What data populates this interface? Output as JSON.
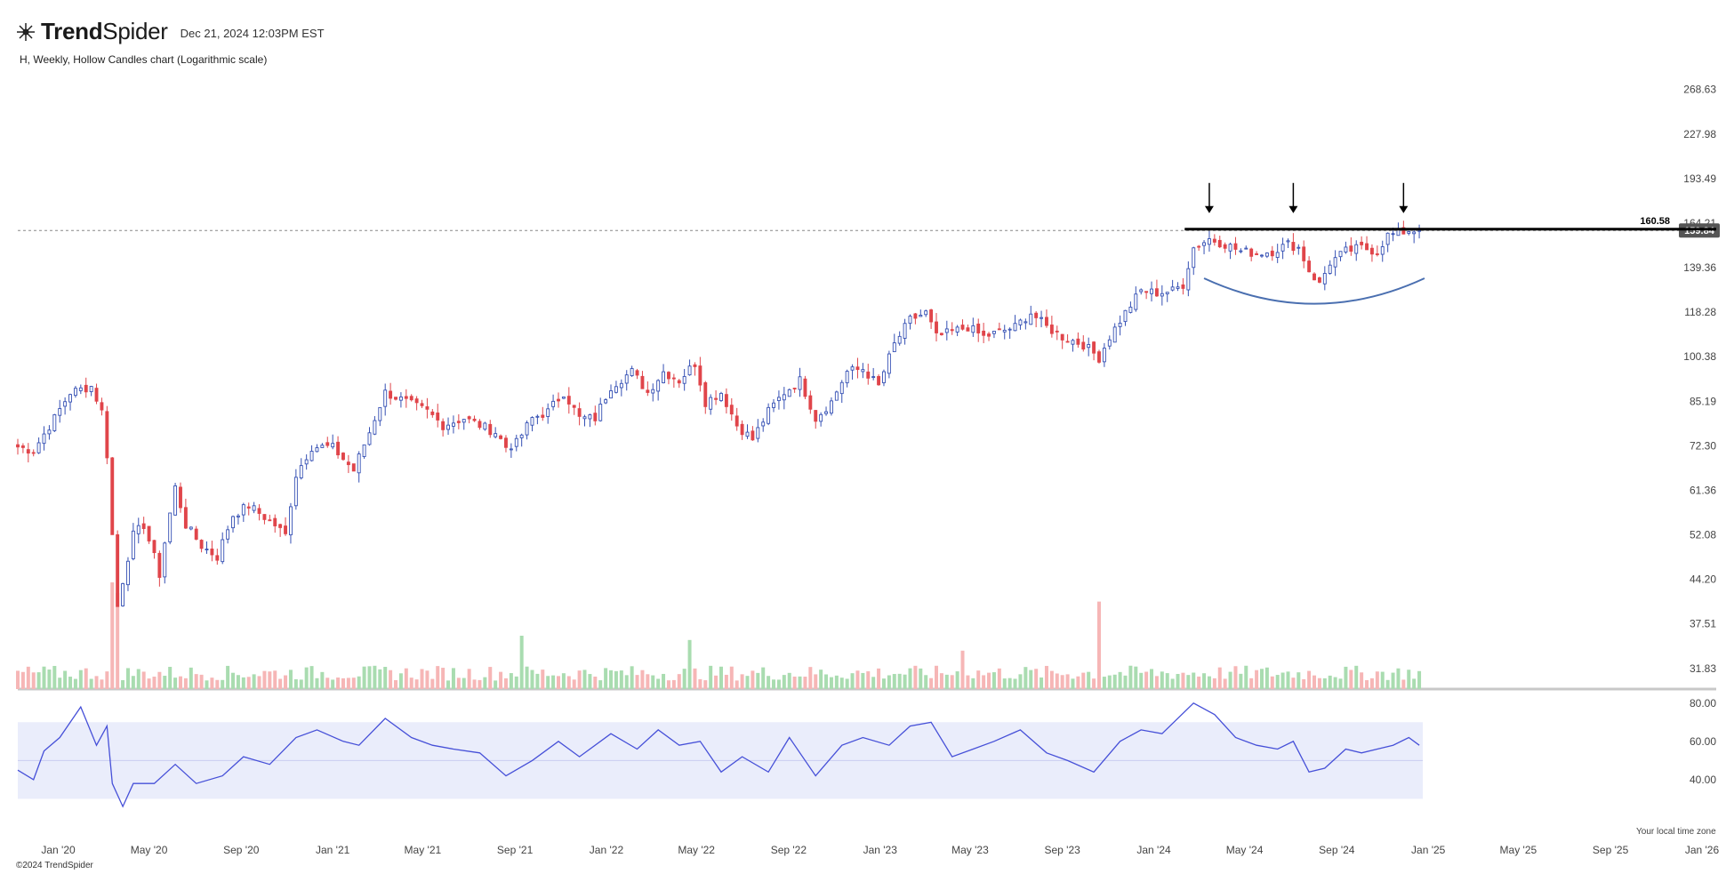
{
  "header": {
    "brand_bold": "Trend",
    "brand_rest": "Spider",
    "date": "Dec 21, 2024 12:03PM EST",
    "subtitle": "H, Weekly, Hollow Candles chart (Logarithmic scale)",
    "copyright": "©2024 TrendSpider",
    "local_time_note": "Your local time zone"
  },
  "colors": {
    "up": "#3550b4",
    "down": "#e0454a",
    "vol_up": "#a9dcb0",
    "vol_down": "#f6b6b6",
    "rsi_line": "#4650d8",
    "rsi_band": "#eaedfb",
    "resistance": "#000000",
    "arc": "#4a6fb0"
  },
  "chart_data": [
    {
      "type": "candlestick",
      "title": "H, Weekly, Hollow Candles chart (Logarithmic scale)",
      "scale": "log",
      "ylim": [
        29.5,
        300
      ],
      "y_ticks": [
        "268.63",
        "227.98",
        "193.49",
        "164.21",
        "139.36",
        "118.28",
        "100.38",
        "85.19",
        "72.30",
        "61.36",
        "52.08",
        "44.20",
        "37.51",
        "31.83"
      ],
      "x_ticks": [
        "Jan '20",
        "May '20",
        "Sep '20",
        "Jan '21",
        "May '21",
        "Sep '21",
        "Jan '22",
        "May '22",
        "Sep '22",
        "Jan '23",
        "May '23",
        "Sep '23",
        "Jan '24",
        "May '24",
        "Sep '24",
        "Jan '25",
        "May '25",
        "Sep '25",
        "Jan '26"
      ],
      "x_start": "2019-11-08",
      "x_end": "2026-01-20",
      "weekly_close_path": [
        [
          "2019-11-08",
          72
        ],
        [
          "2019-11-29",
          71
        ],
        [
          "2019-12-27",
          80
        ],
        [
          "2020-01-17",
          88
        ],
        [
          "2020-02-14",
          90
        ],
        [
          "2020-02-28",
          82
        ],
        [
          "2020-03-06",
          70
        ],
        [
          "2020-03-13",
          52
        ],
        [
          "2020-03-20",
          40
        ],
        [
          "2020-03-27",
          44
        ],
        [
          "2020-04-10",
          52
        ],
        [
          "2020-04-24",
          54
        ],
        [
          "2020-05-15",
          45
        ],
        [
          "2020-06-05",
          62
        ],
        [
          "2020-06-19",
          54
        ],
        [
          "2020-07-10",
          50
        ],
        [
          "2020-07-31",
          48
        ],
        [
          "2020-08-21",
          56
        ],
        [
          "2020-09-11",
          58
        ],
        [
          "2020-10-16",
          54
        ],
        [
          "2020-10-30",
          52
        ],
        [
          "2020-11-13",
          65
        ],
        [
          "2020-12-04",
          72
        ],
        [
          "2020-12-31",
          72
        ],
        [
          "2021-01-29",
          66
        ],
        [
          "2021-02-19",
          76
        ],
        [
          "2021-03-12",
          88
        ],
        [
          "2021-04-09",
          85
        ],
        [
          "2021-05-07",
          82
        ],
        [
          "2021-05-28",
          78
        ],
        [
          "2021-06-25",
          80
        ],
        [
          "2021-07-16",
          78
        ],
        [
          "2021-08-06",
          76
        ],
        [
          "2021-08-20",
          72
        ],
        [
          "2021-09-03",
          73
        ],
        [
          "2021-09-24",
          80
        ],
        [
          "2021-10-15",
          82
        ],
        [
          "2021-11-05",
          88
        ],
        [
          "2021-11-26",
          80
        ],
        [
          "2021-12-17",
          80
        ],
        [
          "2022-01-07",
          90
        ],
        [
          "2022-02-04",
          95
        ],
        [
          "2022-02-25",
          88
        ],
        [
          "2022-03-18",
          95
        ],
        [
          "2022-04-08",
          92
        ],
        [
          "2022-04-29",
          98
        ],
        [
          "2022-05-13",
          85
        ],
        [
          "2022-06-03",
          88
        ],
        [
          "2022-06-24",
          78
        ],
        [
          "2022-07-15",
          74
        ],
        [
          "2022-08-05",
          82
        ],
        [
          "2022-08-26",
          88
        ],
        [
          "2022-09-16",
          92
        ],
        [
          "2022-10-07",
          80
        ],
        [
          "2022-10-28",
          85
        ],
        [
          "2022-11-18",
          95
        ],
        [
          "2022-12-09",
          96
        ],
        [
          "2022-12-30",
          90
        ],
        [
          "2023-01-20",
          105
        ],
        [
          "2023-02-10",
          115
        ],
        [
          "2023-03-03",
          118
        ],
        [
          "2023-03-17",
          108
        ],
        [
          "2023-04-07",
          110
        ],
        [
          "2023-04-28",
          112
        ],
        [
          "2023-05-19",
          108
        ],
        [
          "2023-06-09",
          110
        ],
        [
          "2023-06-30",
          112
        ],
        [
          "2023-07-21",
          118
        ],
        [
          "2023-08-11",
          112
        ],
        [
          "2023-09-01",
          108
        ],
        [
          "2023-09-29",
          105
        ],
        [
          "2023-10-20",
          100
        ],
        [
          "2023-11-03",
          108
        ],
        [
          "2023-11-24",
          118
        ],
        [
          "2023-12-15",
          128
        ],
        [
          "2024-01-05",
          127
        ],
        [
          "2024-01-26",
          128
        ],
        [
          "2024-02-09",
          131
        ],
        [
          "2024-02-23",
          150
        ],
        [
          "2024-03-15",
          155
        ],
        [
          "2024-04-05",
          152
        ],
        [
          "2024-04-26",
          148
        ],
        [
          "2024-05-17",
          147
        ],
        [
          "2024-06-07",
          148
        ],
        [
          "2024-06-28",
          152
        ],
        [
          "2024-07-12",
          150
        ],
        [
          "2024-07-26",
          138
        ],
        [
          "2024-08-09",
          131
        ],
        [
          "2024-08-23",
          142
        ],
        [
          "2024-09-13",
          148
        ],
        [
          "2024-10-04",
          150
        ],
        [
          "2024-10-25",
          148
        ],
        [
          "2024-11-08",
          157
        ],
        [
          "2024-11-22",
          158
        ],
        [
          "2024-12-06",
          160
        ],
        [
          "2024-12-20",
          159.84
        ]
      ],
      "current_price": "159.84",
      "resistance_label": "160.58",
      "resistance": 160.58,
      "resistance_from": "2024-02-23",
      "arrows": [
        "2024-03-15",
        "2024-07-05",
        "2024-11-29"
      ],
      "arc": {
        "from": "2024-03-08",
        "to": "2024-12-27",
        "start": 134,
        "bottom": 122,
        "end": 134
      }
    },
    {
      "type": "bar",
      "name": "Volume",
      "spikes": [
        [
          "2020-03-13",
          1.0
        ],
        [
          "2020-03-20",
          0.9
        ],
        [
          "2023-10-20",
          0.82
        ],
        [
          "2021-09-10",
          0.5
        ],
        [
          "2022-04-22",
          0.46
        ],
        [
          "2023-04-21",
          0.36
        ]
      ]
    },
    {
      "type": "line",
      "name": "RSI",
      "band": [
        30,
        70
      ],
      "y_ticks": [
        "80.00",
        "60.00",
        "40.00"
      ],
      "ylim": [
        20,
        85
      ],
      "points": [
        [
          "2019-11-08",
          45
        ],
        [
          "2019-11-29",
          40
        ],
        [
          "2019-12-13",
          55
        ],
        [
          "2020-01-03",
          62
        ],
        [
          "2020-01-31",
          78
        ],
        [
          "2020-02-21",
          58
        ],
        [
          "2020-03-06",
          68
        ],
        [
          "2020-03-13",
          38
        ],
        [
          "2020-03-27",
          26
        ],
        [
          "2020-04-10",
          38
        ],
        [
          "2020-05-08",
          38
        ],
        [
          "2020-06-05",
          48
        ],
        [
          "2020-07-03",
          38
        ],
        [
          "2020-08-07",
          42
        ],
        [
          "2020-09-04",
          52
        ],
        [
          "2020-10-09",
          48
        ],
        [
          "2020-11-13",
          62
        ],
        [
          "2020-12-11",
          66
        ],
        [
          "2021-01-15",
          60
        ],
        [
          "2021-02-05",
          58
        ],
        [
          "2021-03-12",
          72
        ],
        [
          "2021-04-16",
          62
        ],
        [
          "2021-05-14",
          58
        ],
        [
          "2021-06-11",
          56
        ],
        [
          "2021-07-16",
          54
        ],
        [
          "2021-08-20",
          42
        ],
        [
          "2021-09-24",
          50
        ],
        [
          "2021-10-29",
          60
        ],
        [
          "2021-11-26",
          52
        ],
        [
          "2022-01-07",
          64
        ],
        [
          "2022-02-11",
          56
        ],
        [
          "2022-03-11",
          66
        ],
        [
          "2022-04-08",
          58
        ],
        [
          "2022-05-06",
          60
        ],
        [
          "2022-06-03",
          44
        ],
        [
          "2022-07-01",
          52
        ],
        [
          "2022-08-05",
          44
        ],
        [
          "2022-09-02",
          62
        ],
        [
          "2022-10-07",
          42
        ],
        [
          "2022-11-11",
          58
        ],
        [
          "2022-12-09",
          62
        ],
        [
          "2023-01-13",
          58
        ],
        [
          "2023-02-10",
          68
        ],
        [
          "2023-03-10",
          70
        ],
        [
          "2023-04-07",
          52
        ],
        [
          "2023-05-05",
          56
        ],
        [
          "2023-06-02",
          60
        ],
        [
          "2023-07-07",
          66
        ],
        [
          "2023-08-11",
          54
        ],
        [
          "2023-09-08",
          50
        ],
        [
          "2023-10-13",
          44
        ],
        [
          "2023-11-17",
          60
        ],
        [
          "2023-12-15",
          66
        ],
        [
          "2024-01-12",
          64
        ],
        [
          "2024-02-23",
          80
        ],
        [
          "2024-03-22",
          74
        ],
        [
          "2024-04-19",
          62
        ],
        [
          "2024-05-17",
          58
        ],
        [
          "2024-06-14",
          56
        ],
        [
          "2024-07-05",
          60
        ],
        [
          "2024-07-26",
          44
        ],
        [
          "2024-08-16",
          46
        ],
        [
          "2024-09-13",
          56
        ],
        [
          "2024-10-04",
          54
        ],
        [
          "2024-10-25",
          56
        ],
        [
          "2024-11-15",
          58
        ],
        [
          "2024-12-06",
          62
        ],
        [
          "2024-12-20",
          58
        ]
      ]
    }
  ]
}
